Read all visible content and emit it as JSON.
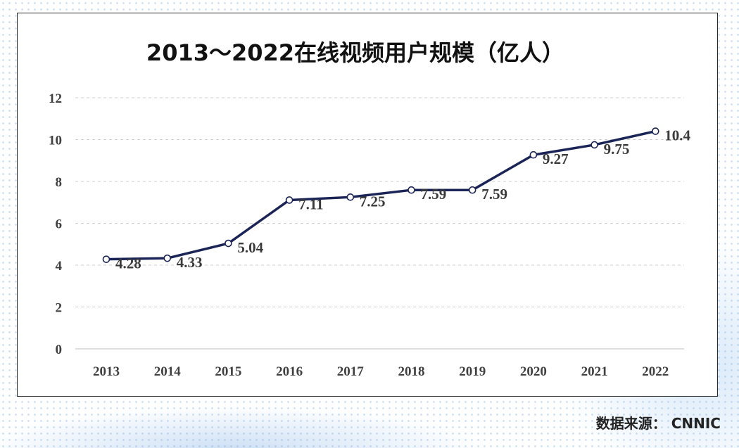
{
  "chart_data": {
    "type": "line",
    "title": "2013～2022在线视频用户规模（亿人）",
    "categories": [
      "2013",
      "2014",
      "2015",
      "2016",
      "2017",
      "2018",
      "2019",
      "2020",
      "2021",
      "2022"
    ],
    "values": [
      4.28,
      4.33,
      5.04,
      7.11,
      7.25,
      7.59,
      7.59,
      9.27,
      9.75,
      10.4
    ],
    "data_labels": [
      "4.28",
      "4.33",
      "5.04",
      "7.11",
      "7.25",
      "7.59",
      "7.59",
      "9.27",
      "9.75",
      "10.4"
    ],
    "y_ticks": [
      "0",
      "2",
      "4",
      "6",
      "8",
      "10",
      "12"
    ],
    "ylim": [
      0,
      12
    ],
    "grid": true,
    "line_color": "#1b2457"
  },
  "source": "数据来源： CNNIC"
}
